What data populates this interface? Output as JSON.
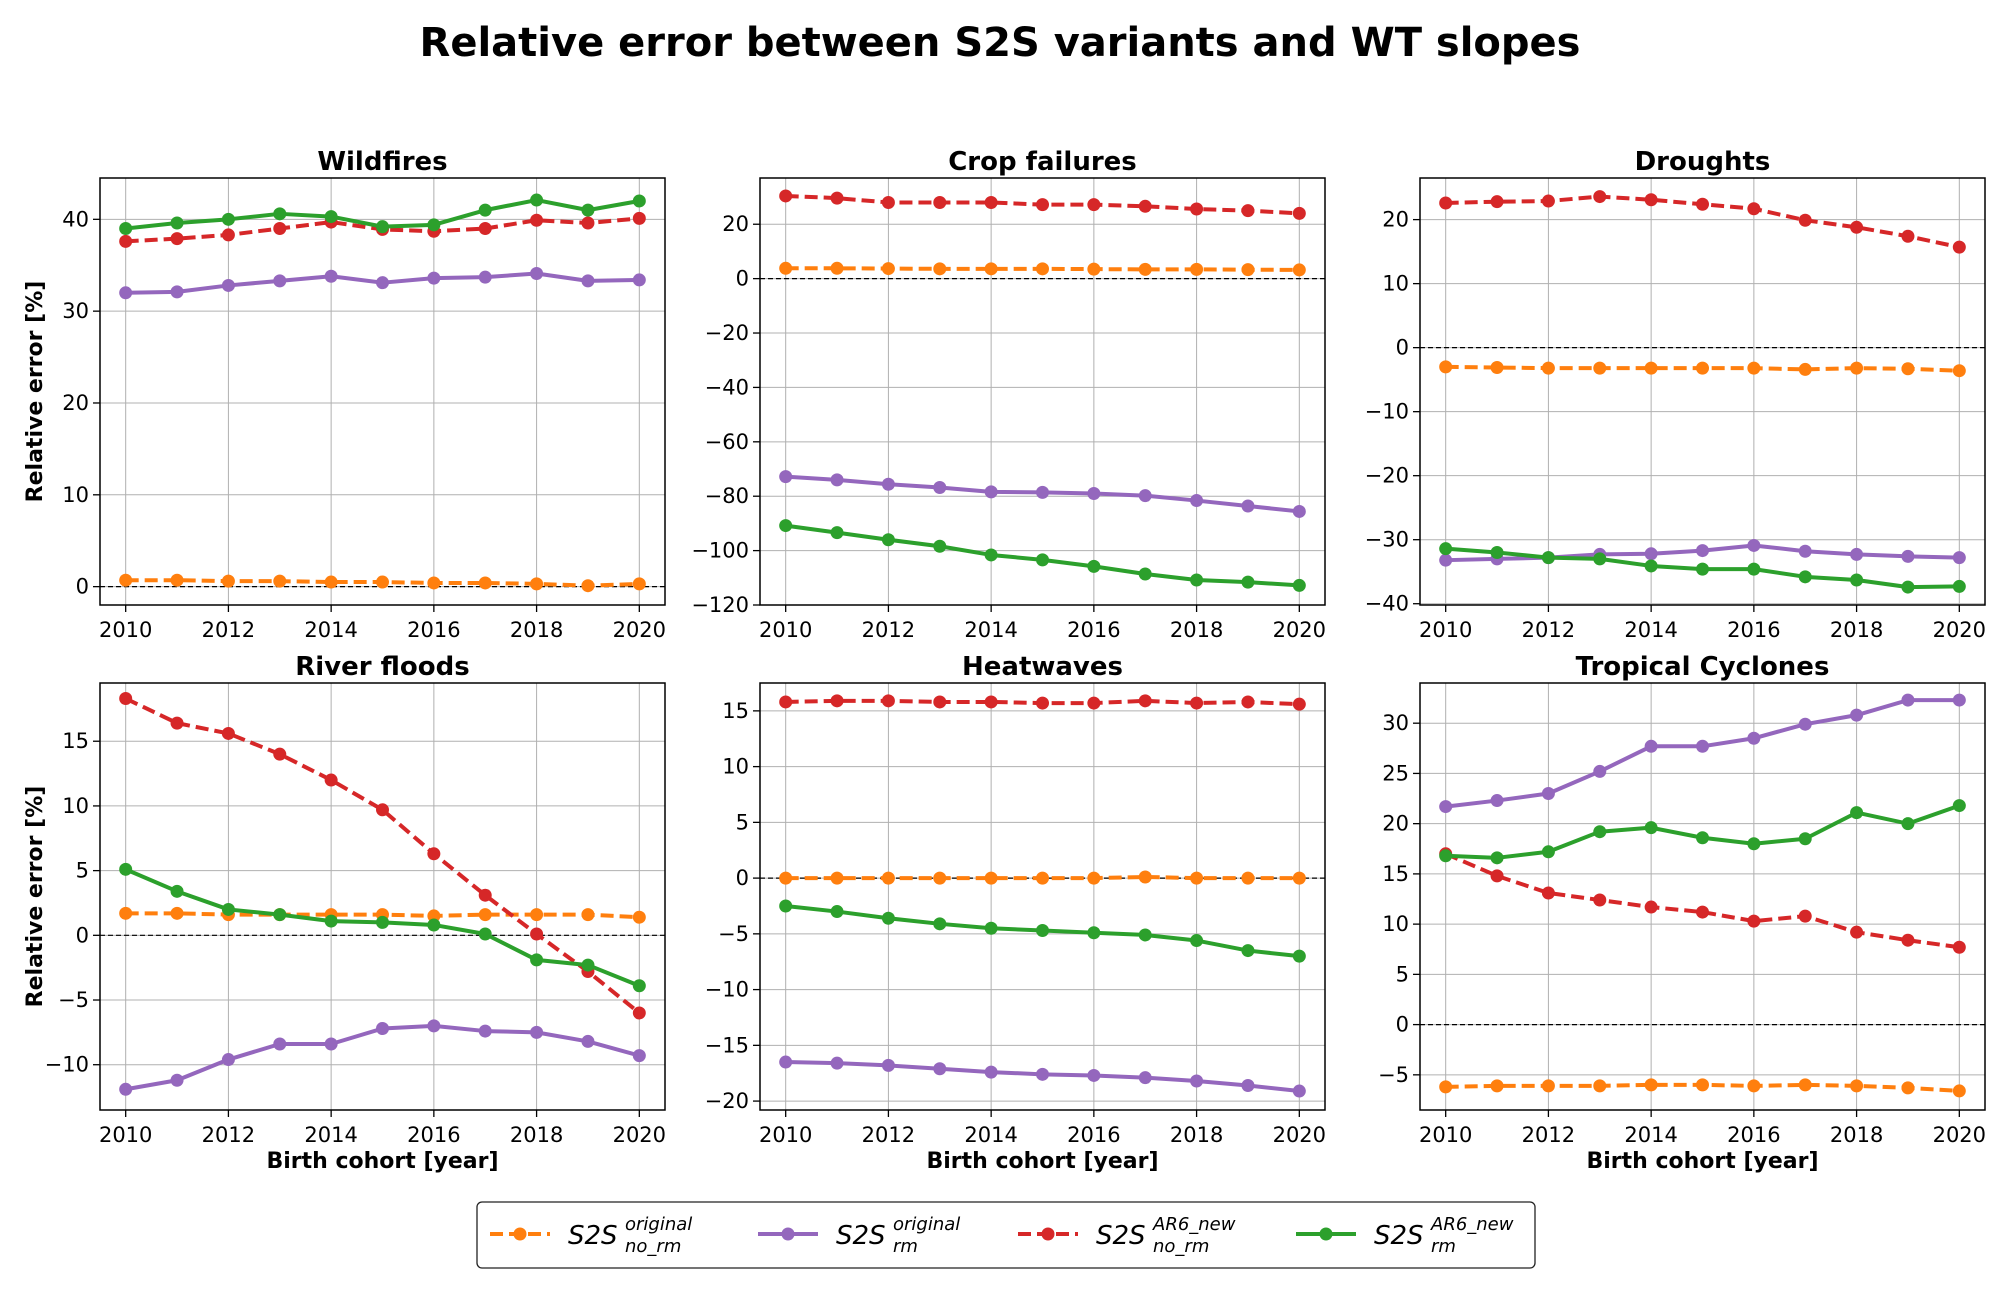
{
  "title": "Relative error between S2S variants and WT slopes",
  "series_styles": [
    {
      "key": "orig_no_rm",
      "color": "#ff7f0e",
      "dashed": true
    },
    {
      "key": "orig_rm",
      "color": "#9467bd",
      "dashed": false
    },
    {
      "key": "ar6_no_rm",
      "color": "#d62728",
      "dashed": true
    },
    {
      "key": "ar6_rm",
      "color": "#2ca02c",
      "dashed": false
    }
  ],
  "legend": [
    {
      "base": "S2S",
      "sup": "original",
      "sub": "no_rm"
    },
    {
      "base": "S2S",
      "sup": "original",
      "sub": "rm"
    },
    {
      "base": "S2S",
      "sup": "AR6_new",
      "sub": "no_rm"
    },
    {
      "base": "S2S",
      "sup": "AR6_new",
      "sub": "rm"
    }
  ],
  "chart_data": [
    {
      "type": "line",
      "title": "Wildfires",
      "xlabel": "",
      "ylabel": "Relative error [%]",
      "x": [
        2010,
        2011,
        2012,
        2013,
        2014,
        2015,
        2016,
        2017,
        2018,
        2019,
        2020
      ],
      "xlim": [
        2009.5,
        2020.5
      ],
      "ylim": [
        -2,
        44.5
      ],
      "xticks": [
        2010,
        2012,
        2014,
        2016,
        2018,
        2020
      ],
      "yticks": [
        0,
        10,
        20,
        30,
        40
      ],
      "grid": true,
      "zero_line": true,
      "series": [
        {
          "values": [
            0.7,
            0.7,
            0.6,
            0.6,
            0.5,
            0.5,
            0.4,
            0.4,
            0.3,
            0.1,
            0.3
          ]
        },
        {
          "values": [
            32.0,
            32.1,
            32.8,
            33.3,
            33.8,
            33.1,
            33.6,
            33.7,
            34.1,
            33.3,
            33.4
          ]
        },
        {
          "values": [
            37.6,
            37.9,
            38.3,
            39.0,
            39.7,
            38.9,
            38.7,
            39.0,
            39.9,
            39.6,
            40.1
          ]
        },
        {
          "values": [
            39.0,
            39.6,
            40.0,
            40.6,
            40.3,
            39.2,
            39.4,
            41.0,
            42.1,
            41.0,
            42.0
          ]
        }
      ]
    },
    {
      "type": "line",
      "title": "Crop failures",
      "xlabel": "",
      "ylabel": "",
      "x": [
        2010,
        2011,
        2012,
        2013,
        2014,
        2015,
        2016,
        2017,
        2018,
        2019,
        2020
      ],
      "xlim": [
        2009.5,
        2020.5
      ],
      "ylim": [
        -120,
        37
      ],
      "xticks": [
        2010,
        2012,
        2014,
        2016,
        2018,
        2020
      ],
      "yticks": [
        -120,
        -100,
        -80,
        -60,
        -40,
        -20,
        0,
        20
      ],
      "grid": true,
      "zero_line": true,
      "series": [
        {
          "values": [
            3.8,
            3.8,
            3.7,
            3.6,
            3.6,
            3.6,
            3.5,
            3.4,
            3.4,
            3.3,
            3.2
          ]
        },
        {
          "values": [
            -72.8,
            -74.0,
            -75.6,
            -76.8,
            -78.4,
            -78.6,
            -79.0,
            -79.8,
            -81.6,
            -83.6,
            -85.6
          ]
        },
        {
          "values": [
            30.4,
            29.6,
            28.0,
            28.0,
            28.0,
            27.2,
            27.2,
            26.6,
            25.6,
            25.0,
            24.0
          ]
        },
        {
          "values": [
            -90.8,
            -93.4,
            -96.0,
            -98.4,
            -101.6,
            -103.4,
            -105.8,
            -108.6,
            -110.8,
            -111.6,
            -112.8
          ]
        }
      ]
    },
    {
      "type": "line",
      "title": "Droughts",
      "xlabel": "",
      "ylabel": "",
      "x": [
        2010,
        2011,
        2012,
        2013,
        2014,
        2015,
        2016,
        2017,
        2018,
        2019,
        2020
      ],
      "xlim": [
        2009.5,
        2020.5
      ],
      "ylim": [
        -40.2,
        26.5
      ],
      "xticks": [
        2010,
        2012,
        2014,
        2016,
        2018,
        2020
      ],
      "yticks": [
        -40,
        -30,
        -20,
        -10,
        0,
        10,
        20
      ],
      "grid": true,
      "zero_line": true,
      "series": [
        {
          "values": [
            -3.0,
            -3.1,
            -3.2,
            -3.2,
            -3.2,
            -3.2,
            -3.2,
            -3.4,
            -3.2,
            -3.3,
            -3.6
          ]
        },
        {
          "values": [
            -33.2,
            -33.0,
            -32.8,
            -32.3,
            -32.2,
            -31.7,
            -30.9,
            -31.8,
            -32.3,
            -32.6,
            -32.8
          ]
        },
        {
          "values": [
            22.6,
            22.8,
            22.9,
            23.6,
            23.1,
            22.4,
            21.7,
            19.9,
            18.8,
            17.4,
            15.7
          ]
        },
        {
          "values": [
            -31.4,
            -32.0,
            -32.8,
            -33.0,
            -34.1,
            -34.6,
            -34.6,
            -35.8,
            -36.3,
            -37.4,
            -37.3
          ]
        }
      ]
    },
    {
      "type": "line",
      "title": "River floods",
      "xlabel": "Birth cohort [year]",
      "ylabel": "Relative error [%]",
      "x": [
        2010,
        2011,
        2012,
        2013,
        2014,
        2015,
        2016,
        2017,
        2018,
        2019,
        2020
      ],
      "xlim": [
        2009.5,
        2020.5
      ],
      "ylim": [
        -13.5,
        19.5
      ],
      "xticks": [
        2010,
        2012,
        2014,
        2016,
        2018,
        2020
      ],
      "yticks": [
        -10,
        -5,
        0,
        5,
        10,
        15
      ],
      "grid": true,
      "zero_line": true,
      "series": [
        {
          "values": [
            1.7,
            1.7,
            1.6,
            1.6,
            1.6,
            1.6,
            1.5,
            1.6,
            1.6,
            1.6,
            1.4
          ]
        },
        {
          "values": [
            -11.9,
            -11.2,
            -9.6,
            -8.4,
            -8.4,
            -7.2,
            -7.0,
            -7.4,
            -7.5,
            -8.2,
            -9.3
          ]
        },
        {
          "values": [
            18.3,
            16.4,
            15.6,
            14.0,
            12.0,
            9.7,
            6.3,
            3.1,
            0.1,
            -2.8,
            -6.0
          ]
        },
        {
          "values": [
            5.1,
            3.4,
            2.0,
            1.6,
            1.1,
            1.0,
            0.8,
            0.1,
            -1.9,
            -2.3,
            -3.9
          ]
        }
      ]
    },
    {
      "type": "line",
      "title": "Heatwaves",
      "xlabel": "Birth cohort [year]",
      "ylabel": "",
      "x": [
        2010,
        2011,
        2012,
        2013,
        2014,
        2015,
        2016,
        2017,
        2018,
        2019,
        2020
      ],
      "xlim": [
        2009.5,
        2020.5
      ],
      "ylim": [
        -20.8,
        17.5
      ],
      "xticks": [
        2010,
        2012,
        2014,
        2016,
        2018,
        2020
      ],
      "yticks": [
        -20,
        -15,
        -10,
        -5,
        0,
        5,
        10,
        15
      ],
      "grid": true,
      "zero_line": true,
      "series": [
        {
          "values": [
            0.0,
            0.0,
            0.0,
            0.0,
            0.0,
            0.0,
            0.0,
            0.1,
            0.0,
            0.0,
            0.0
          ]
        },
        {
          "values": [
            -16.5,
            -16.6,
            -16.8,
            -17.1,
            -17.4,
            -17.6,
            -17.7,
            -17.9,
            -18.2,
            -18.6,
            -19.1
          ]
        },
        {
          "values": [
            15.8,
            15.9,
            15.9,
            15.8,
            15.8,
            15.7,
            15.7,
            15.9,
            15.7,
            15.8,
            15.6
          ]
        },
        {
          "values": [
            -2.5,
            -3.0,
            -3.6,
            -4.1,
            -4.5,
            -4.7,
            -4.9,
            -5.1,
            -5.6,
            -6.5,
            -7.0
          ]
        }
      ]
    },
    {
      "type": "line",
      "title": "Tropical Cyclones",
      "xlabel": "Birth cohort [year]",
      "ylabel": "",
      "x": [
        2010,
        2011,
        2012,
        2013,
        2014,
        2015,
        2016,
        2017,
        2018,
        2019,
        2020
      ],
      "xlim": [
        2009.5,
        2020.5
      ],
      "ylim": [
        -8.5,
        34
      ],
      "xticks": [
        2010,
        2012,
        2014,
        2016,
        2018,
        2020
      ],
      "yticks": [
        -5,
        0,
        5,
        10,
        15,
        20,
        25,
        30
      ],
      "grid": true,
      "zero_line": true,
      "series": [
        {
          "values": [
            -6.2,
            -6.1,
            -6.1,
            -6.1,
            -6.0,
            -6.0,
            -6.1,
            -6.0,
            -6.1,
            -6.3,
            -6.6
          ]
        },
        {
          "values": [
            21.7,
            22.3,
            23.0,
            25.2,
            27.7,
            27.7,
            28.5,
            29.9,
            30.8,
            32.3,
            32.3
          ]
        },
        {
          "values": [
            17.0,
            14.8,
            13.1,
            12.4,
            11.7,
            11.2,
            10.3,
            10.8,
            9.2,
            8.4,
            7.7
          ]
        },
        {
          "values": [
            16.8,
            16.6,
            17.2,
            19.2,
            19.6,
            18.6,
            18.0,
            18.5,
            21.1,
            20.0,
            21.8
          ]
        }
      ]
    }
  ]
}
